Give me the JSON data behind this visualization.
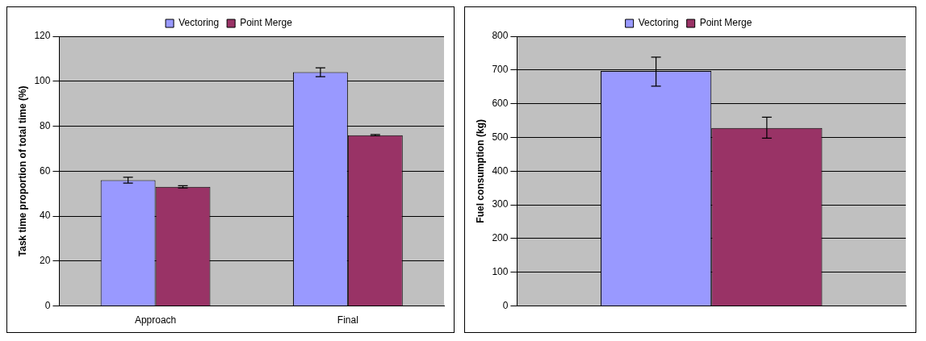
{
  "chart_data": [
    {
      "type": "bar",
      "ylabel": "Task time proportion of total time (%)",
      "categories": [
        "Approach",
        "Final"
      ],
      "series": [
        {
          "name": "Vectoring",
          "color": "#9999ff",
          "values": [
            56,
            104
          ],
          "errors": [
            1.3,
            2
          ]
        },
        {
          "name": "Point Merge",
          "color": "#993366",
          "values": [
            53,
            76
          ],
          "errors": [
            0.5,
            0.3
          ]
        }
      ],
      "ylim": [
        0,
        120
      ],
      "yticks": [
        0,
        20,
        40,
        60,
        80,
        100,
        120
      ],
      "grid": "y",
      "legend": "top"
    },
    {
      "type": "bar",
      "ylabel": "Fuel consumption (kg)",
      "categories": [
        null
      ],
      "series": [
        {
          "name": "Vectoring",
          "color": "#9999ff",
          "values": [
            697
          ],
          "errors": [
            [
              652,
              738
            ]
          ]
        },
        {
          "name": "Point Merge",
          "color": "#993366",
          "values": [
            528
          ],
          "errors": [
            [
              498,
              560
            ]
          ]
        }
      ],
      "ylim": [
        0,
        800
      ],
      "yticks": [
        0,
        100,
        200,
        300,
        400,
        500,
        600,
        700,
        800
      ],
      "grid": "y",
      "legend": "top"
    }
  ]
}
